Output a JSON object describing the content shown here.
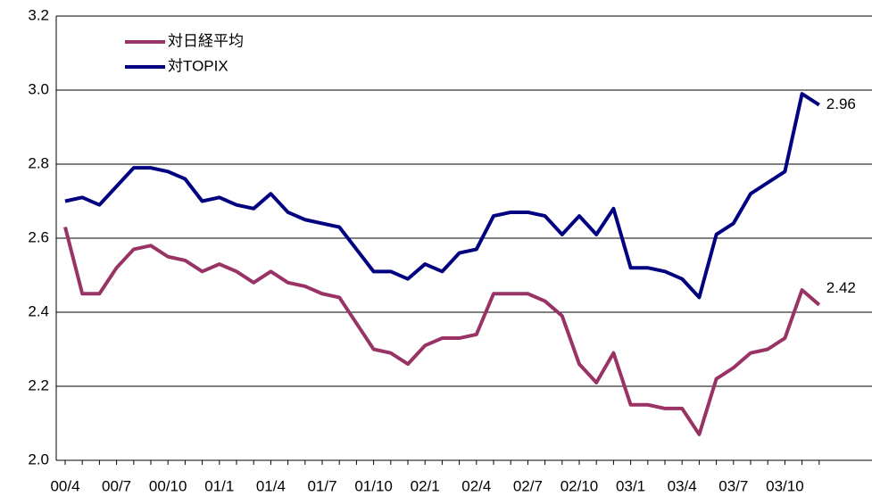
{
  "chart_data": {
    "type": "line",
    "categories": [
      "00/4",
      null,
      null,
      "00/7",
      null,
      null,
      "00/10",
      null,
      null,
      "01/1",
      null,
      null,
      "01/4",
      null,
      null,
      "01/7",
      null,
      null,
      "01/10",
      null,
      null,
      "02/1",
      null,
      null,
      "02/4",
      null,
      null,
      "02/7",
      null,
      null,
      "02/10",
      null,
      null,
      "03/1",
      null,
      null,
      "03/4",
      null,
      null,
      "03/7",
      null,
      null,
      "03/10",
      null,
      null
    ],
    "series": [
      {
        "name": "対日経平均",
        "color": "#993366",
        "values": [
          2.63,
          2.45,
          2.45,
          2.52,
          2.57,
          2.58,
          2.55,
          2.54,
          2.51,
          2.53,
          2.51,
          2.48,
          2.51,
          2.48,
          2.47,
          2.45,
          2.44,
          2.37,
          2.3,
          2.29,
          2.26,
          2.31,
          2.33,
          2.33,
          2.34,
          2.45,
          2.45,
          2.45,
          2.43,
          2.39,
          2.26,
          2.21,
          2.29,
          2.15,
          2.15,
          2.14,
          2.14,
          2.07,
          2.22,
          2.25,
          2.29,
          2.3,
          2.33,
          2.46,
          2.42
        ]
      },
      {
        "name": "対TOPIX",
        "color": "#000080",
        "values": [
          2.7,
          2.71,
          2.69,
          2.74,
          2.79,
          2.79,
          2.78,
          2.76,
          2.7,
          2.71,
          2.69,
          2.68,
          2.72,
          2.67,
          2.65,
          2.64,
          2.63,
          2.57,
          2.51,
          2.51,
          2.49,
          2.53,
          2.51,
          2.56,
          2.57,
          2.66,
          2.67,
          2.67,
          2.66,
          2.61,
          2.66,
          2.61,
          2.68,
          2.52,
          2.52,
          2.51,
          2.49,
          2.44,
          2.61,
          2.64,
          2.72,
          2.75,
          2.78,
          2.99,
          2.96
        ]
      }
    ],
    "ylim": [
      2.0,
      3.2
    ],
    "yticks": [
      {
        "value": 2.0,
        "label": "2.0"
      },
      2.2,
      2.4,
      2.6,
      2.8,
      {
        "value": 3.0,
        "label": "3.0"
      },
      3.2
    ],
    "grid": true,
    "legend": "top-left"
  }
}
